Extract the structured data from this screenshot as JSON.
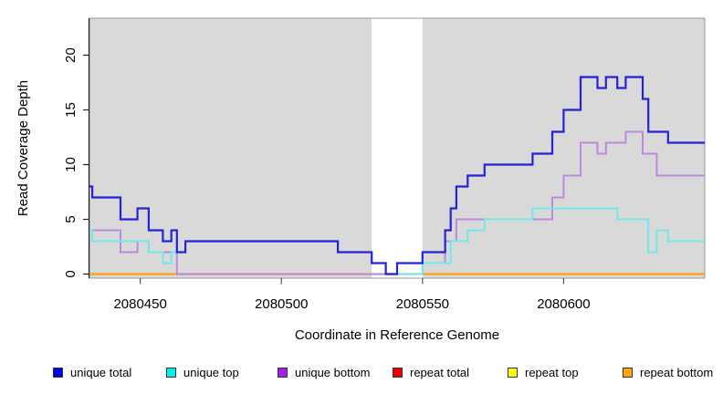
{
  "chart_data": {
    "type": "line",
    "step": "post",
    "title": "",
    "xlabel": "Coordinate in Reference Genome",
    "ylabel": "Read Coverage Depth",
    "xlim": [
      2080432,
      2080650
    ],
    "ylim": [
      0,
      23.4
    ],
    "x_ticks": [
      2080450,
      2080500,
      2080550,
      2080600
    ],
    "y_ticks": [
      0,
      5,
      10,
      15,
      20
    ],
    "grid": false,
    "legend_position": "bottom",
    "plot_background_color": "#d9d9d9",
    "background_regions": [
      {
        "name": "shaded-left",
        "from": 2080432,
        "to": 2080532
      },
      {
        "name": "shaded-right",
        "from": 2080550,
        "to": 2080650
      }
    ],
    "gap_region": {
      "from": 2080532,
      "to": 2080550
    },
    "legend": [
      {
        "label": "unique total",
        "color": "#0000ee"
      },
      {
        "label": "unique top",
        "color": "#00eeee"
      },
      {
        "label": "unique bottom",
        "color": "#a020f0"
      },
      {
        "label": "repeat total",
        "color": "#ee0000"
      },
      {
        "label": "repeat top",
        "color": "#ffff00"
      },
      {
        "label": "repeat bottom",
        "color": "#ffa500"
      }
    ],
    "series": [
      {
        "name": "repeat total",
        "line_color": "#dd2222",
        "width": 2,
        "points": [
          [
            2080432,
            0
          ]
        ]
      },
      {
        "name": "repeat top",
        "line_color": "#ffee00",
        "width": 2,
        "points": [
          [
            2080432,
            0
          ]
        ]
      },
      {
        "name": "repeat bottom",
        "line_color": "#ff9f1a",
        "width": 2.2,
        "points": [
          [
            2080432,
            0
          ]
        ]
      },
      {
        "name": "unique bottom",
        "line_color": "#bd88e0",
        "width": 2,
        "points": [
          [
            2080432,
            4
          ],
          [
            2080443,
            2
          ],
          [
            2080449,
            3
          ],
          [
            2080453,
            2
          ],
          [
            2080463,
            0
          ],
          [
            2080541,
            1
          ],
          [
            2080558,
            3
          ],
          [
            2080562,
            5
          ],
          [
            2080596,
            7
          ],
          [
            2080600,
            9
          ],
          [
            2080606,
            12
          ],
          [
            2080612,
            11
          ],
          [
            2080615,
            12
          ],
          [
            2080622,
            13
          ],
          [
            2080628,
            11
          ],
          [
            2080633,
            9
          ]
        ]
      },
      {
        "name": "unique top",
        "line_color": "#70e8ec",
        "width": 2,
        "points": [
          [
            2080432,
            4
          ],
          [
            2080433,
            3
          ],
          [
            2080453,
            2
          ],
          [
            2080458,
            1
          ],
          [
            2080461,
            2
          ],
          [
            2080466,
            3
          ],
          [
            2080520,
            2
          ],
          [
            2080532,
            1
          ],
          [
            2080537,
            0
          ],
          [
            2080550,
            1
          ],
          [
            2080560,
            3
          ],
          [
            2080566,
            4
          ],
          [
            2080572,
            5
          ],
          [
            2080589,
            6
          ],
          [
            2080619,
            5
          ],
          [
            2080630,
            2
          ],
          [
            2080633,
            4
          ],
          [
            2080637,
            3
          ]
        ]
      },
      {
        "name": "unique total",
        "line_color": "#2323d9",
        "width": 2.2,
        "points": [
          [
            2080432,
            8
          ],
          [
            2080433,
            7
          ],
          [
            2080443,
            5
          ],
          [
            2080449,
            6
          ],
          [
            2080453,
            4
          ],
          [
            2080458,
            3
          ],
          [
            2080461,
            4
          ],
          [
            2080463,
            2
          ],
          [
            2080466,
            3
          ],
          [
            2080520,
            2
          ],
          [
            2080532,
            1
          ],
          [
            2080537,
            0
          ],
          [
            2080541,
            1
          ],
          [
            2080550,
            2
          ],
          [
            2080558,
            4
          ],
          [
            2080560,
            6
          ],
          [
            2080562,
            8
          ],
          [
            2080566,
            9
          ],
          [
            2080572,
            10
          ],
          [
            2080589,
            11
          ],
          [
            2080596,
            13
          ],
          [
            2080600,
            15
          ],
          [
            2080606,
            18
          ],
          [
            2080612,
            17
          ],
          [
            2080615,
            18
          ],
          [
            2080619,
            17
          ],
          [
            2080622,
            18
          ],
          [
            2080628,
            16
          ],
          [
            2080630,
            13
          ],
          [
            2080637,
            12
          ]
        ]
      }
    ]
  }
}
